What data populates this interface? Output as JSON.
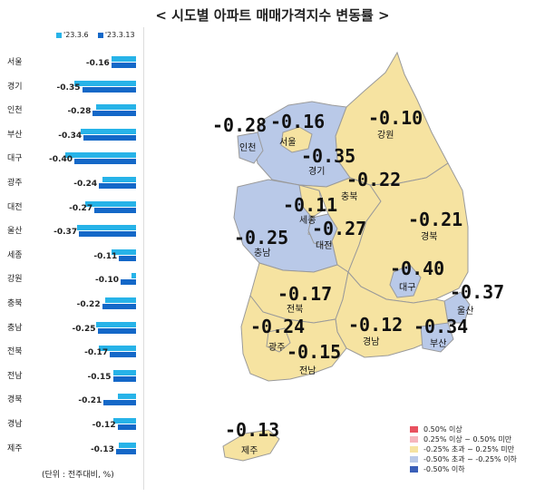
{
  "title": "< 시도별 아파트 매매가격지수 변동률 >",
  "colors": {
    "prev": "#27b3e8",
    "curr": "#1468c8",
    "yellow": "#f6e3a1",
    "lightblue": "#b9c9e8",
    "pink": "#f6b6bd",
    "red": "#e8515f",
    "navy": "#3a5fb8"
  },
  "chart_data": [
    {
      "type": "bar",
      "orientation": "horizontal",
      "legend": {
        "prev": "'23.3.6",
        "curr": "'23.3.13",
        "placement": "top-left"
      },
      "categories": [
        "서울",
        "경기",
        "인천",
        "부산",
        "대구",
        "광주",
        "대전",
        "울산",
        "세종",
        "강원",
        "충북",
        "충남",
        "전북",
        "전남",
        "경북",
        "경남",
        "제주"
      ],
      "series": [
        {
          "name": "'23.3.6"
        },
        {
          "name": "'23.3.13",
          "values": [
            -0.16,
            -0.35,
            -0.28,
            -0.34,
            -0.4,
            -0.24,
            -0.27,
            -0.37,
            -0.11,
            -0.1,
            -0.22,
            -0.25,
            -0.17,
            -0.15,
            -0.21,
            -0.12,
            -0.13
          ]
        }
      ],
      "estimated_prev_values": [
        -0.16,
        -0.4,
        -0.26,
        -0.36,
        -0.46,
        -0.22,
        -0.33,
        -0.38,
        -0.16,
        -0.03,
        -0.2,
        -0.26,
        -0.24,
        -0.15,
        -0.12,
        -0.15,
        -0.11
      ],
      "unit_note": "(단위 : 전주대비, %)"
    },
    {
      "type": "map",
      "regions": [
        {
          "name": "인천",
          "value": "-0.28"
        },
        {
          "name": "서울",
          "value": "-0.16"
        },
        {
          "name": "경기",
          "value": "-0.35"
        },
        {
          "name": "강원",
          "value": "-0.10"
        },
        {
          "name": "충북",
          "value": "-0.22"
        },
        {
          "name": "세종",
          "value": "-0.11"
        },
        {
          "name": "충남",
          "value": "-0.25"
        },
        {
          "name": "대전",
          "value": "-0.27"
        },
        {
          "name": "경북",
          "value": "-0.21"
        },
        {
          "name": "대구",
          "value": "-0.40"
        },
        {
          "name": "울산",
          "value": "-0.37"
        },
        {
          "name": "전북",
          "value": "-0.17"
        },
        {
          "name": "광주",
          "value": "-0.24"
        },
        {
          "name": "전남",
          "value": "-0.15"
        },
        {
          "name": "경남",
          "value": "-0.12"
        },
        {
          "name": "부산",
          "value": "-0.34"
        },
        {
          "name": "제주",
          "value": "-0.13"
        }
      ],
      "legend": [
        {
          "label": "0.50% 이상",
          "color": "#e8515f"
        },
        {
          "label": "0.25% 이상 ~ 0.50% 미만",
          "color": "#f6b6bd"
        },
        {
          "label": "-0.25% 초과 ~ 0.25% 미만",
          "color": "#f6e3a1"
        },
        {
          "label": "-0.50% 초과 ~ -0.25% 이하",
          "color": "#b9c9e8"
        },
        {
          "label": "-0.50% 이하",
          "color": "#3a5fb8"
        }
      ]
    }
  ]
}
